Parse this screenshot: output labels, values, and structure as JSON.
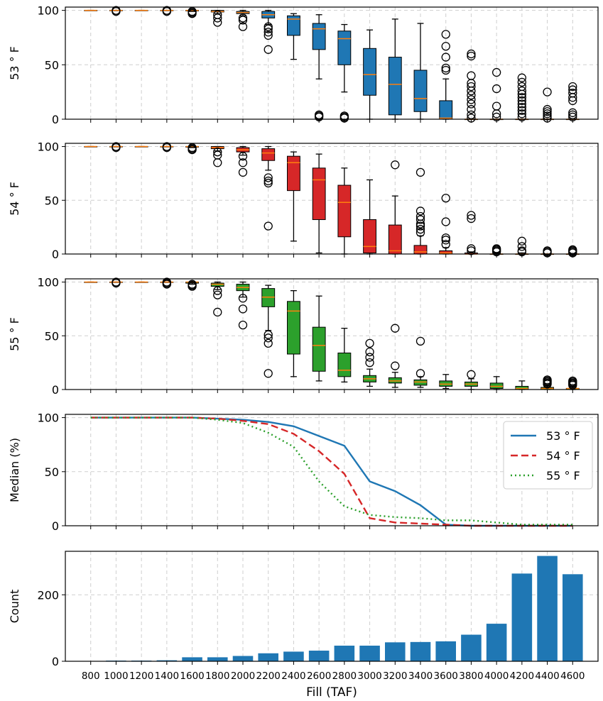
{
  "chart_data": [
    {
      "type": "box",
      "ylabel": "53$^\\circ$F",
      "ylabel_text": "53 ° F",
      "yticks": [
        0,
        50,
        100
      ],
      "ylim": [
        0,
        103
      ],
      "color": "#1f77b4",
      "median_color": "#ff7f0e",
      "boxes": [
        {
          "x": 800,
          "q1": 100,
          "med": 100,
          "q3": 100,
          "wlo": 100,
          "whi": 100,
          "fliers": []
        },
        {
          "x": 1000,
          "q1": 100,
          "med": 100,
          "q3": 100,
          "wlo": 100,
          "whi": 100,
          "fliers": [
            99,
            100
          ]
        },
        {
          "x": 1200,
          "q1": 100,
          "med": 100,
          "q3": 100,
          "wlo": 100,
          "whi": 100,
          "fliers": []
        },
        {
          "x": 1400,
          "q1": 100,
          "med": 100,
          "q3": 100,
          "wlo": 100,
          "whi": 100,
          "fliers": [
            99,
            100
          ]
        },
        {
          "x": 1600,
          "q1": 99.5,
          "med": 100,
          "q3": 100,
          "wlo": 99,
          "whi": 100,
          "fliers": [
            97,
            98,
            99
          ]
        },
        {
          "x": 1800,
          "q1": 98.5,
          "med": 99,
          "q3": 100,
          "wlo": 97,
          "whi": 100,
          "fliers": [
            89,
            93,
            96
          ]
        },
        {
          "x": 2000,
          "q1": 97,
          "med": 98,
          "q3": 99,
          "wlo": 95,
          "whi": 100,
          "fliers": [
            85,
            91,
            93
          ]
        },
        {
          "x": 2200,
          "q1": 93,
          "med": 96,
          "q3": 99,
          "wlo": 87,
          "whi": 100,
          "fliers": [
            64,
            77,
            80,
            83,
            85
          ]
        },
        {
          "x": 2400,
          "q1": 77,
          "med": 92,
          "q3": 95,
          "wlo": 55,
          "whi": 97,
          "fliers": []
        },
        {
          "x": 2600,
          "q1": 64,
          "med": 83,
          "q3": 88,
          "wlo": 37,
          "whi": 96,
          "fliers": [
            2,
            3,
            4
          ]
        },
        {
          "x": 2800,
          "q1": 50,
          "med": 74,
          "q3": 81,
          "wlo": 25,
          "whi": 87,
          "fliers": [
            1,
            2,
            3
          ]
        },
        {
          "x": 3000,
          "q1": 22,
          "med": 41,
          "q3": 65,
          "wlo": 0,
          "whi": 82,
          "fliers": []
        },
        {
          "x": 3200,
          "q1": 4,
          "med": 32,
          "q3": 57,
          "wlo": 0,
          "whi": 92,
          "fliers": []
        },
        {
          "x": 3400,
          "q1": 7,
          "med": 19,
          "q3": 45,
          "wlo": 0,
          "whi": 88,
          "fliers": []
        },
        {
          "x": 3600,
          "q1": 0,
          "med": 1,
          "q3": 17,
          "wlo": 0,
          "whi": 37,
          "fliers": [
            45,
            47,
            57,
            67,
            78
          ]
        },
        {
          "x": 3800,
          "q1": 0,
          "med": 0,
          "q3": 0,
          "wlo": 0,
          "whi": 0,
          "fliers": [
            1,
            4,
            9,
            14,
            18,
            22,
            26,
            30,
            33,
            40,
            58,
            60
          ]
        },
        {
          "x": 4000,
          "q1": 0,
          "med": 0,
          "q3": 0,
          "wlo": 0,
          "whi": 0,
          "fliers": [
            2,
            5,
            12,
            28,
            43
          ]
        },
        {
          "x": 4200,
          "q1": 0,
          "med": 0,
          "q3": 0,
          "wlo": 0,
          "whi": 0,
          "fliers": [
            2,
            5,
            8,
            11,
            14,
            17,
            20,
            23,
            26,
            30,
            34,
            38
          ]
        },
        {
          "x": 4400,
          "q1": 0,
          "med": 0,
          "q3": 0,
          "wlo": 0,
          "whi": 0,
          "fliers": [
            1,
            3,
            5,
            7,
            9,
            25
          ]
        },
        {
          "x": 4600,
          "q1": 0,
          "med": 0,
          "q3": 0,
          "wlo": 0,
          "whi": 0,
          "fliers": [
            2,
            4,
            6,
            17,
            20,
            24,
            27,
            30
          ]
        }
      ]
    },
    {
      "type": "box",
      "ylabel": "54$^\\circ$F",
      "ylabel_text": "54 ° F",
      "yticks": [
        0,
        50,
        100
      ],
      "ylim": [
        0,
        103
      ],
      "color": "#d62728",
      "median_color": "#ff7f0e",
      "boxes": [
        {
          "x": 800,
          "q1": 100,
          "med": 100,
          "q3": 100,
          "wlo": 100,
          "whi": 100,
          "fliers": []
        },
        {
          "x": 1000,
          "q1": 100,
          "med": 100,
          "q3": 100,
          "wlo": 100,
          "whi": 100,
          "fliers": [
            99,
            100
          ]
        },
        {
          "x": 1200,
          "q1": 100,
          "med": 100,
          "q3": 100,
          "wlo": 100,
          "whi": 100,
          "fliers": []
        },
        {
          "x": 1400,
          "q1": 100,
          "med": 100,
          "q3": 100,
          "wlo": 100,
          "whi": 100,
          "fliers": [
            99,
            100
          ]
        },
        {
          "x": 1600,
          "q1": 99.5,
          "med": 100,
          "q3": 100,
          "wlo": 99,
          "whi": 100,
          "fliers": [
            97,
            98,
            99
          ]
        },
        {
          "x": 1800,
          "q1": 98,
          "med": 99,
          "q3": 100,
          "wlo": 96,
          "whi": 100,
          "fliers": [
            85,
            92,
            95
          ]
        },
        {
          "x": 2000,
          "q1": 95,
          "med": 97,
          "q3": 99,
          "wlo": 92,
          "whi": 100,
          "fliers": [
            76,
            85,
            91
          ]
        },
        {
          "x": 2200,
          "q1": 87,
          "med": 94,
          "q3": 98,
          "wlo": 78,
          "whi": 100,
          "fliers": [
            26,
            66,
            68,
            71
          ]
        },
        {
          "x": 2400,
          "q1": 59,
          "med": 85,
          "q3": 91,
          "wlo": 12,
          "whi": 95,
          "fliers": []
        },
        {
          "x": 2600,
          "q1": 32,
          "med": 69,
          "q3": 80,
          "wlo": 1,
          "whi": 93,
          "fliers": []
        },
        {
          "x": 2800,
          "q1": 16,
          "med": 48,
          "q3": 64,
          "wlo": 0,
          "whi": 80,
          "fliers": []
        },
        {
          "x": 3000,
          "q1": 1,
          "med": 7,
          "q3": 32,
          "wlo": 0,
          "whi": 69,
          "fliers": []
        },
        {
          "x": 3200,
          "q1": 0,
          "med": 3,
          "q3": 27,
          "wlo": 0,
          "whi": 54,
          "fliers": [
            83
          ]
        },
        {
          "x": 3400,
          "q1": 0,
          "med": 2,
          "q3": 8,
          "wlo": 0,
          "whi": 17,
          "fliers": [
            20,
            23,
            26,
            28,
            32,
            35,
            40,
            76
          ]
        },
        {
          "x": 3600,
          "q1": 0,
          "med": 1,
          "q3": 3,
          "wlo": 0,
          "whi": 6,
          "fliers": [
            9,
            13,
            15,
            30,
            52
          ]
        },
        {
          "x": 3800,
          "q1": 0,
          "med": 0,
          "q3": 1,
          "wlo": 0,
          "whi": 2,
          "fliers": [
            3,
            5,
            33,
            36
          ]
        },
        {
          "x": 4000,
          "q1": 0,
          "med": 0,
          "q3": 0,
          "wlo": 0,
          "whi": 1,
          "fliers": [
            2,
            3,
            4,
            5
          ]
        },
        {
          "x": 4200,
          "q1": 0,
          "med": 0,
          "q3": 0,
          "wlo": 0,
          "whi": 1,
          "fliers": [
            2,
            3,
            7,
            12
          ]
        },
        {
          "x": 4400,
          "q1": 0,
          "med": 0,
          "q3": 0,
          "wlo": 0,
          "whi": 0,
          "fliers": [
            1,
            2,
            3
          ]
        },
        {
          "x": 4600,
          "q1": 0,
          "med": 0,
          "q3": 0,
          "wlo": 0,
          "whi": 0,
          "fliers": [
            1,
            2,
            3,
            4
          ]
        }
      ]
    },
    {
      "type": "box",
      "ylabel": "55$^\\circ$F",
      "ylabel_text": "55 ° F",
      "yticks": [
        0,
        50,
        100
      ],
      "ylim": [
        0,
        103
      ],
      "color": "#2ca02c",
      "median_color": "#ff7f0e",
      "boxes": [
        {
          "x": 800,
          "q1": 100,
          "med": 100,
          "q3": 100,
          "wlo": 100,
          "whi": 100,
          "fliers": []
        },
        {
          "x": 1000,
          "q1": 100,
          "med": 100,
          "q3": 100,
          "wlo": 100,
          "whi": 100,
          "fliers": [
            99,
            100
          ]
        },
        {
          "x": 1200,
          "q1": 100,
          "med": 100,
          "q3": 100,
          "wlo": 100,
          "whi": 100,
          "fliers": []
        },
        {
          "x": 1400,
          "q1": 100,
          "med": 100,
          "q3": 100,
          "wlo": 100,
          "whi": 100,
          "fliers": [
            98,
            99,
            100
          ]
        },
        {
          "x": 1600,
          "q1": 99,
          "med": 100,
          "q3": 100,
          "wlo": 98,
          "whi": 100,
          "fliers": [
            96,
            97,
            98
          ]
        },
        {
          "x": 1800,
          "q1": 96,
          "med": 98,
          "q3": 99,
          "wlo": 93,
          "whi": 100,
          "fliers": [
            72,
            88,
            92
          ]
        },
        {
          "x": 2000,
          "q1": 92,
          "med": 95,
          "q3": 98,
          "wlo": 86,
          "whi": 100,
          "fliers": [
            60,
            75,
            85
          ]
        },
        {
          "x": 2200,
          "q1": 77,
          "med": 86,
          "q3": 94,
          "wlo": 55,
          "whi": 97,
          "fliers": [
            15,
            43,
            48,
            51
          ]
        },
        {
          "x": 2400,
          "q1": 33,
          "med": 73,
          "q3": 82,
          "wlo": 12,
          "whi": 92,
          "fliers": []
        },
        {
          "x": 2600,
          "q1": 17,
          "med": 41,
          "q3": 58,
          "wlo": 8,
          "whi": 87,
          "fliers": []
        },
        {
          "x": 2800,
          "q1": 12,
          "med": 18,
          "q3": 34,
          "wlo": 7,
          "whi": 57,
          "fliers": []
        },
        {
          "x": 3000,
          "q1": 7,
          "med": 10,
          "q3": 13,
          "wlo": 3,
          "whi": 19,
          "fliers": [
            25,
            30,
            35,
            43
          ]
        },
        {
          "x": 3200,
          "q1": 6,
          "med": 8,
          "q3": 11,
          "wlo": 2,
          "whi": 16,
          "fliers": [
            22,
            57
          ]
        },
        {
          "x": 3400,
          "q1": 4,
          "med": 7,
          "q3": 9,
          "wlo": 2,
          "whi": 12,
          "fliers": [
            15,
            45
          ]
        },
        {
          "x": 3600,
          "q1": 3,
          "med": 5,
          "q3": 8,
          "wlo": 1,
          "whi": 14,
          "fliers": []
        },
        {
          "x": 3800,
          "q1": 3,
          "med": 5,
          "q3": 7,
          "wlo": 0,
          "whi": 10,
          "fliers": [
            14
          ]
        },
        {
          "x": 4000,
          "q1": 1,
          "med": 3,
          "q3": 6,
          "wlo": 0,
          "whi": 12,
          "fliers": []
        },
        {
          "x": 4200,
          "q1": 0,
          "med": 1,
          "q3": 3,
          "wlo": 0,
          "whi": 8,
          "fliers": []
        },
        {
          "x": 4400,
          "q1": 0,
          "med": 1,
          "q3": 2,
          "wlo": 0,
          "whi": 4,
          "fliers": [
            5,
            6,
            7,
            8,
            9
          ]
        },
        {
          "x": 4600,
          "q1": 0,
          "med": 1,
          "q3": 1,
          "wlo": 0,
          "whi": 3,
          "fliers": [
            4,
            5,
            6,
            7,
            8
          ]
        }
      ]
    },
    {
      "type": "line",
      "ylabel": "Median (%)",
      "yticks": [
        0,
        50,
        100
      ],
      "ylim": [
        0,
        103
      ],
      "legend_position": "top-right",
      "x": [
        800,
        1000,
        1200,
        1400,
        1600,
        1800,
        2000,
        2200,
        2400,
        2600,
        2800,
        3000,
        3200,
        3400,
        3600,
        3800,
        4000,
        4200,
        4400,
        4600
      ],
      "series": [
        {
          "name": "53$^\\circ$F",
          "label": "53 ° F",
          "color": "#1f77b4",
          "style": "solid",
          "values": [
            100,
            100,
            100,
            100,
            100,
            99,
            98,
            96,
            92,
            83,
            74,
            41,
            32,
            19,
            1,
            0,
            0,
            0,
            0,
            0
          ]
        },
        {
          "name": "54$^\\circ$F",
          "label": "54 ° F",
          "color": "#d62728",
          "style": "dashed",
          "values": [
            100,
            100,
            100,
            100,
            100,
            99,
            97,
            94,
            85,
            69,
            48,
            7,
            3,
            2,
            1,
            0,
            0,
            0,
            0,
            0
          ]
        },
        {
          "name": "55$^\\circ$F",
          "label": "55 ° F",
          "color": "#2ca02c",
          "style": "dotted",
          "values": [
            100,
            100,
            100,
            100,
            100,
            98,
            95,
            86,
            73,
            41,
            18,
            10,
            8,
            7,
            5,
            5,
            3,
            1,
            1,
            1
          ]
        }
      ]
    },
    {
      "type": "bar",
      "ylabel": "Count",
      "xlabel": "Fill (TAF)",
      "yticks": [
        0,
        200
      ],
      "ylim": [
        0,
        331
      ],
      "color": "#1f77b4",
      "categories": [
        "800",
        "1000",
        "1200",
        "1400",
        "1600",
        "1800",
        "2000",
        "2200",
        "2400",
        "2600",
        "2800",
        "3000",
        "3200",
        "3400",
        "3600",
        "3800",
        "4000",
        "4200",
        "4400",
        "4600"
      ],
      "values": [
        0,
        2,
        2,
        3,
        12,
        12,
        16,
        24,
        29,
        32,
        47,
        47,
        57,
        58,
        60,
        80,
        113,
        264,
        317,
        262
      ]
    }
  ]
}
